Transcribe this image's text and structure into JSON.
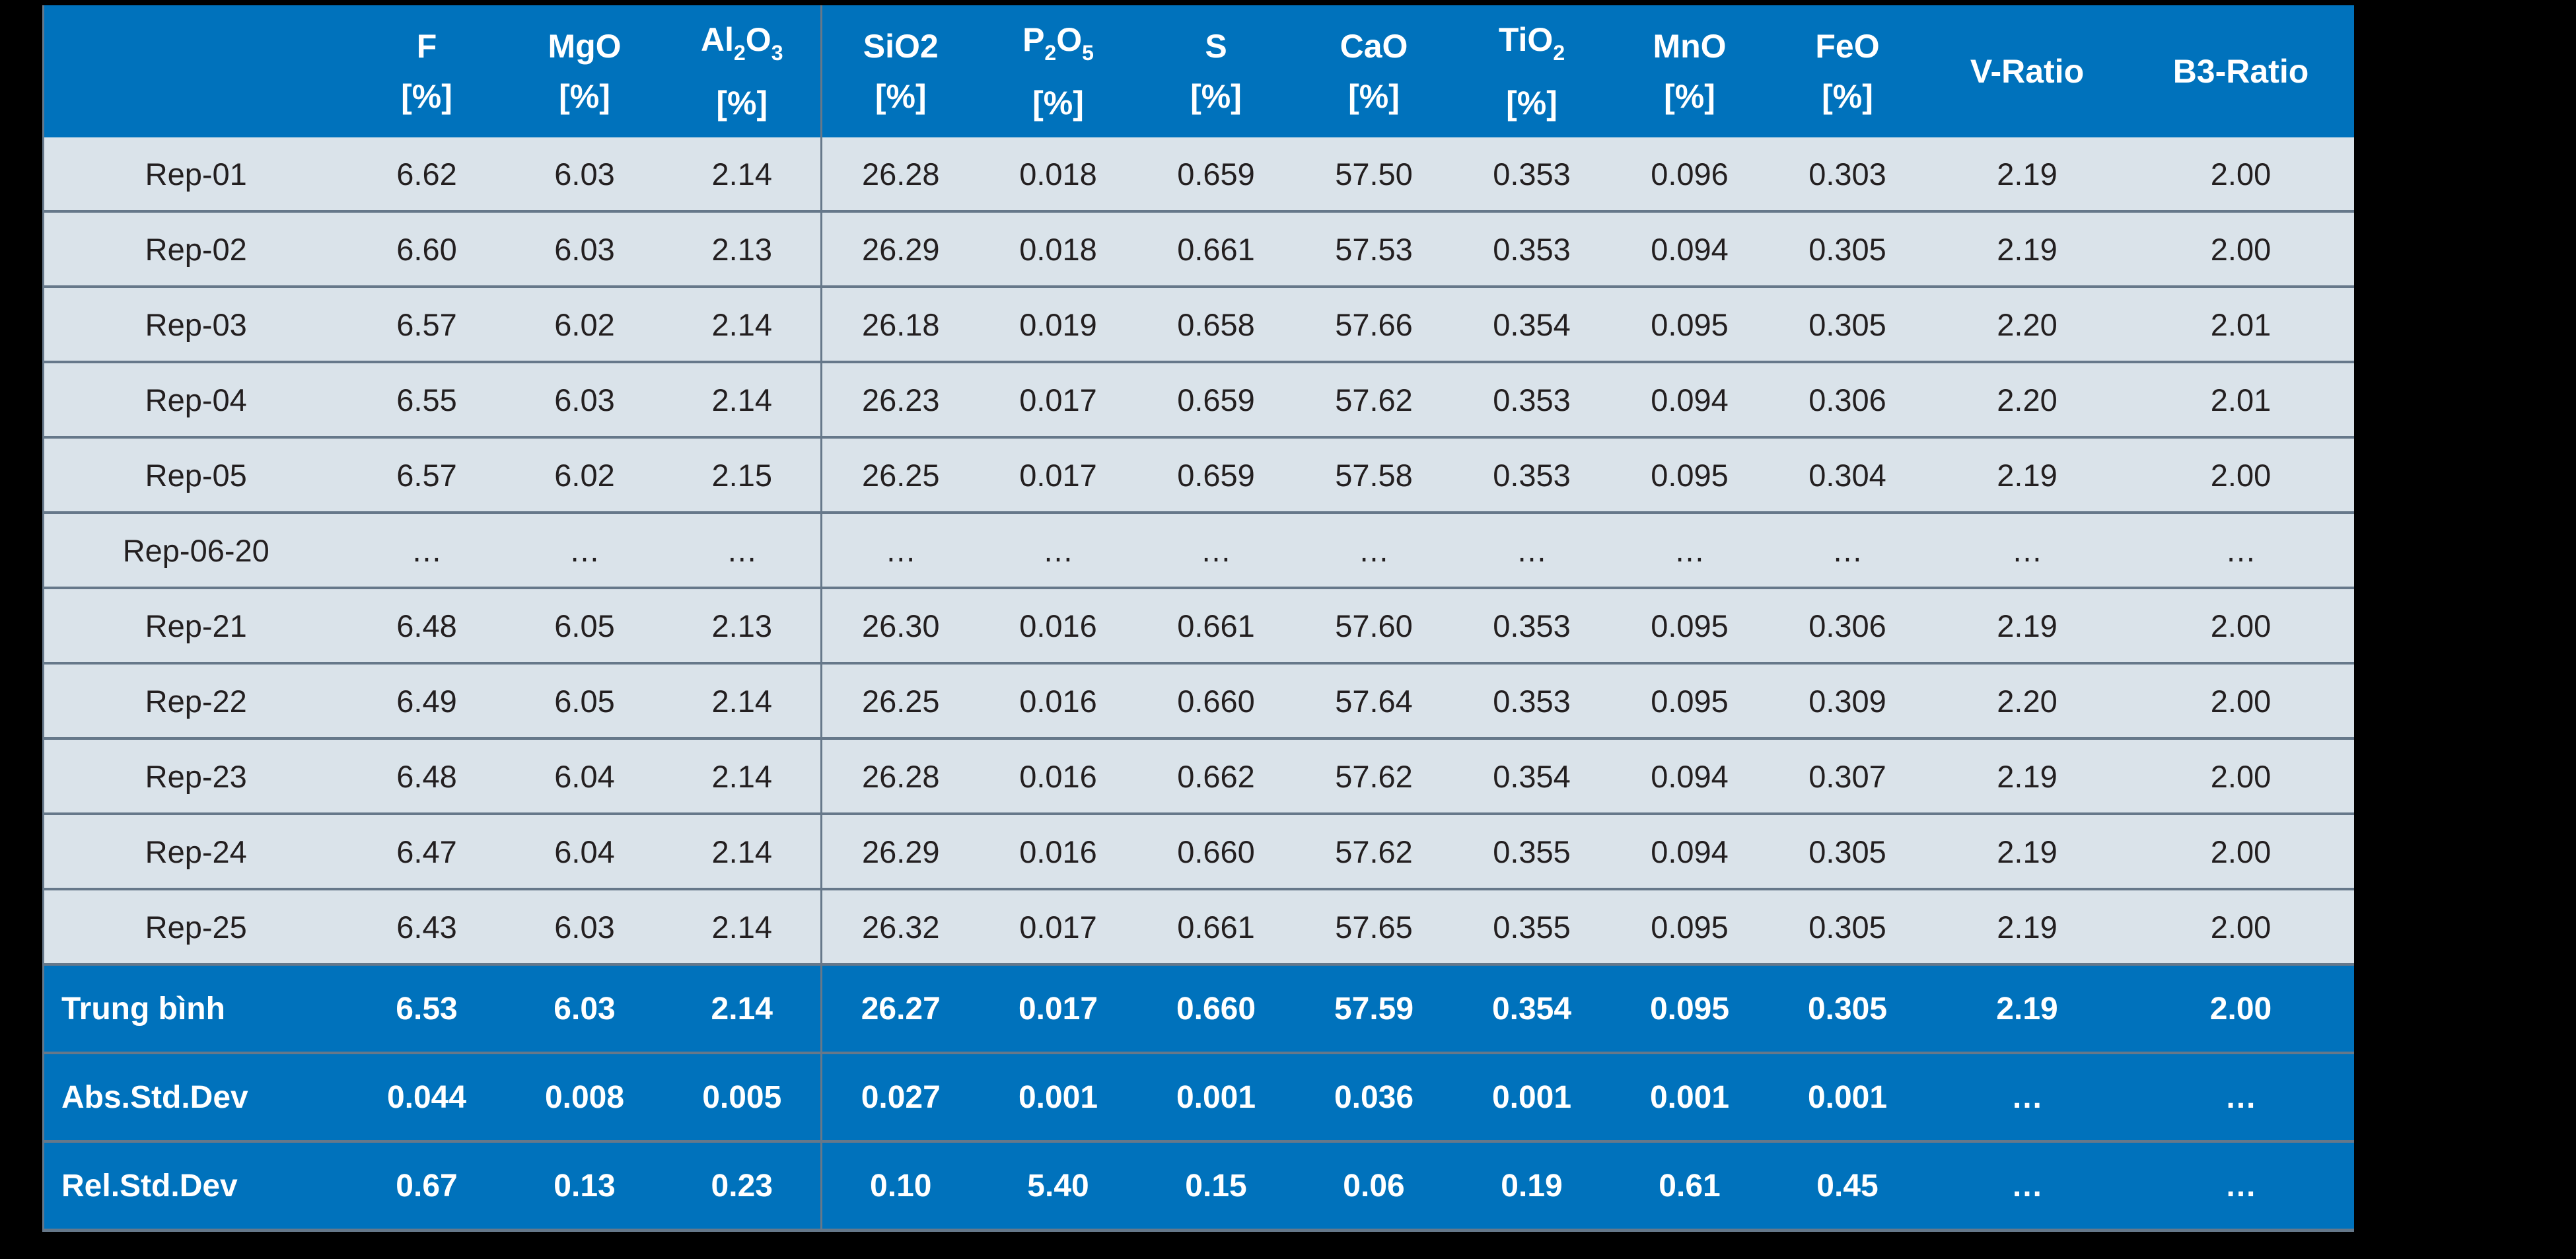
{
  "page": {
    "background_color": "#000000",
    "type": "slide-table"
  },
  "colors": {
    "header_blue": "#0072BC",
    "row_background": "#DAE3EA",
    "divider_gray": "#66788A",
    "data_text": "#231F20",
    "header_text": "#FFFFFF"
  },
  "table": {
    "columns": [
      {
        "parts": [
          [
            "",
            0
          ]
        ],
        "unit": ""
      },
      {
        "parts": [
          [
            "F",
            0
          ]
        ],
        "unit": "[%]"
      },
      {
        "parts": [
          [
            "MgO",
            0
          ]
        ],
        "unit": "[%]"
      },
      {
        "parts": [
          [
            "Al",
            0
          ],
          [
            "2",
            1
          ],
          [
            "O",
            0
          ],
          [
            "3",
            1
          ]
        ],
        "unit": "[%]"
      },
      {
        "parts": [
          [
            "SiO2",
            0
          ]
        ],
        "unit": "[%]"
      },
      {
        "parts": [
          [
            "P",
            0
          ],
          [
            "2",
            1
          ],
          [
            "O",
            0
          ],
          [
            "5",
            1
          ]
        ],
        "unit": "[%]"
      },
      {
        "parts": [
          [
            "S",
            0
          ]
        ],
        "unit": "[%]"
      },
      {
        "parts": [
          [
            "CaO",
            0
          ]
        ],
        "unit": "[%]"
      },
      {
        "parts": [
          [
            "TiO",
            0
          ],
          [
            "2",
            1
          ]
        ],
        "unit": "[%]"
      },
      {
        "parts": [
          [
            "MnO",
            0
          ]
        ],
        "unit": "[%]"
      },
      {
        "parts": [
          [
            "FeO",
            0
          ]
        ],
        "unit": "[%]"
      },
      {
        "parts": [
          [
            "V-Ratio",
            0
          ]
        ],
        "unit": ""
      },
      {
        "parts": [
          [
            "B3-Ratio",
            0
          ]
        ],
        "unit": ""
      }
    ],
    "rows": [
      {
        "label": "Rep-01",
        "values": [
          "6.62",
          "6.03",
          "2.14",
          "26.28",
          "0.018",
          "0.659",
          "57.50",
          "0.353",
          "0.096",
          "0.303",
          "2.19",
          "2.00"
        ]
      },
      {
        "label": "Rep-02",
        "values": [
          "6.60",
          "6.03",
          "2.13",
          "26.29",
          "0.018",
          "0.661",
          "57.53",
          "0.353",
          "0.094",
          "0.305",
          "2.19",
          "2.00"
        ]
      },
      {
        "label": "Rep-03",
        "values": [
          "6.57",
          "6.02",
          "2.14",
          "26.18",
          "0.019",
          "0.658",
          "57.66",
          "0.354",
          "0.095",
          "0.305",
          "2.20",
          "2.01"
        ]
      },
      {
        "label": "Rep-04",
        "values": [
          "6.55",
          "6.03",
          "2.14",
          "26.23",
          "0.017",
          "0.659",
          "57.62",
          "0.353",
          "0.094",
          "0.306",
          "2.20",
          "2.01"
        ]
      },
      {
        "label": "Rep-05",
        "values": [
          "6.57",
          "6.02",
          "2.15",
          "26.25",
          "0.017",
          "0.659",
          "57.58",
          "0.353",
          "0.095",
          "0.304",
          "2.19",
          "2.00"
        ]
      },
      {
        "label": "Rep-06-20",
        "values": [
          "…",
          "…",
          "…",
          "…",
          "…",
          "…",
          "…",
          "…",
          "…",
          "…",
          "…",
          "…"
        ]
      },
      {
        "label": "Rep-21",
        "values": [
          "6.48",
          "6.05",
          "2.13",
          "26.30",
          "0.016",
          "0.661",
          "57.60",
          "0.353",
          "0.095",
          "0.306",
          "2.19",
          "2.00"
        ]
      },
      {
        "label": "Rep-22",
        "values": [
          "6.49",
          "6.05",
          "2.14",
          "26.25",
          "0.016",
          "0.660",
          "57.64",
          "0.353",
          "0.095",
          "0.309",
          "2.20",
          "2.00"
        ]
      },
      {
        "label": "Rep-23",
        "values": [
          "6.48",
          "6.04",
          "2.14",
          "26.28",
          "0.016",
          "0.662",
          "57.62",
          "0.354",
          "0.094",
          "0.307",
          "2.19",
          "2.00"
        ]
      },
      {
        "label": "Rep-24",
        "values": [
          "6.47",
          "6.04",
          "2.14",
          "26.29",
          "0.016",
          "0.660",
          "57.62",
          "0.355",
          "0.094",
          "0.305",
          "2.19",
          "2.00"
        ]
      },
      {
        "label": "Rep-25",
        "values": [
          "6.43",
          "6.03",
          "2.14",
          "26.32",
          "0.017",
          "0.661",
          "57.65",
          "0.355",
          "0.095",
          "0.305",
          "2.19",
          "2.00"
        ]
      }
    ],
    "summary_rows": [
      {
        "label": "Trung bình",
        "values": [
          "6.53",
          "6.03",
          "2.14",
          "26.27",
          "0.017",
          "0.660",
          "57.59",
          "0.354",
          "0.095",
          "0.305",
          "2.19",
          "2.00"
        ]
      },
      {
        "label": "Abs.Std.Dev",
        "values": [
          "0.044",
          "0.008",
          "0.005",
          "0.027",
          "0.001",
          "0.001",
          "0.036",
          "0.001",
          "0.001",
          "0.001",
          "…",
          "…"
        ]
      },
      {
        "label": "Rel.Std.Dev",
        "values": [
          "0.67",
          "0.13",
          "0.23",
          "0.10",
          "5.40",
          "0.15",
          "0.06",
          "0.19",
          "0.61",
          "0.45",
          "…",
          "…"
        ]
      }
    ]
  }
}
